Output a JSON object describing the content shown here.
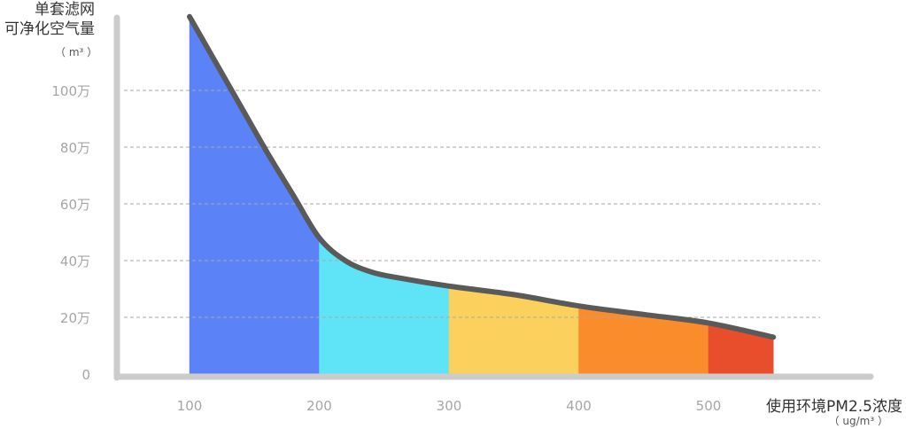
{
  "chart_data": {
    "type": "area",
    "y_title_lines": [
      "单套滤网",
      "可净化空气量"
    ],
    "y_unit": "（ m³ ）",
    "x_title": "使用环境PM2.5浓度",
    "x_unit": "（ ug/m³ ）",
    "y_ticks": [
      "0",
      "20万",
      "40万",
      "60万",
      "80万",
      "100万"
    ],
    "y_tick_values": [
      0,
      20,
      40,
      60,
      80,
      100
    ],
    "x_ticks": [
      "100",
      "200",
      "300",
      "400",
      "500"
    ],
    "x_tick_values": [
      100,
      200,
      300,
      400,
      500
    ],
    "ylim": [
      0,
      100
    ],
    "xlim": [
      45,
      600
    ],
    "grid": true,
    "curve": [
      {
        "x": 100,
        "y": 126
      },
      {
        "x": 120,
        "y": 110
      },
      {
        "x": 140,
        "y": 94
      },
      {
        "x": 160,
        "y": 78
      },
      {
        "x": 180,
        "y": 63
      },
      {
        "x": 200,
        "y": 48
      },
      {
        "x": 220,
        "y": 40
      },
      {
        "x": 240,
        "y": 36
      },
      {
        "x": 260,
        "y": 34
      },
      {
        "x": 300,
        "y": 31
      },
      {
        "x": 350,
        "y": 28
      },
      {
        "x": 400,
        "y": 24
      },
      {
        "x": 450,
        "y": 21
      },
      {
        "x": 500,
        "y": 18
      },
      {
        "x": 550,
        "y": 13
      }
    ],
    "bands": [
      {
        "from": 100,
        "to": 200,
        "color": "#5b82f6"
      },
      {
        "from": 200,
        "to": 300,
        "color": "#5fe3f7"
      },
      {
        "from": 300,
        "to": 400,
        "color": "#fbd05c"
      },
      {
        "from": 400,
        "to": 500,
        "color": "#fb8c2c"
      },
      {
        "from": 500,
        "to": 550,
        "color": "#e84e2c"
      }
    ],
    "line_color": "#5a5a5a",
    "axis_color": "#cccccc",
    "grid_color": "#a9a9a9"
  }
}
